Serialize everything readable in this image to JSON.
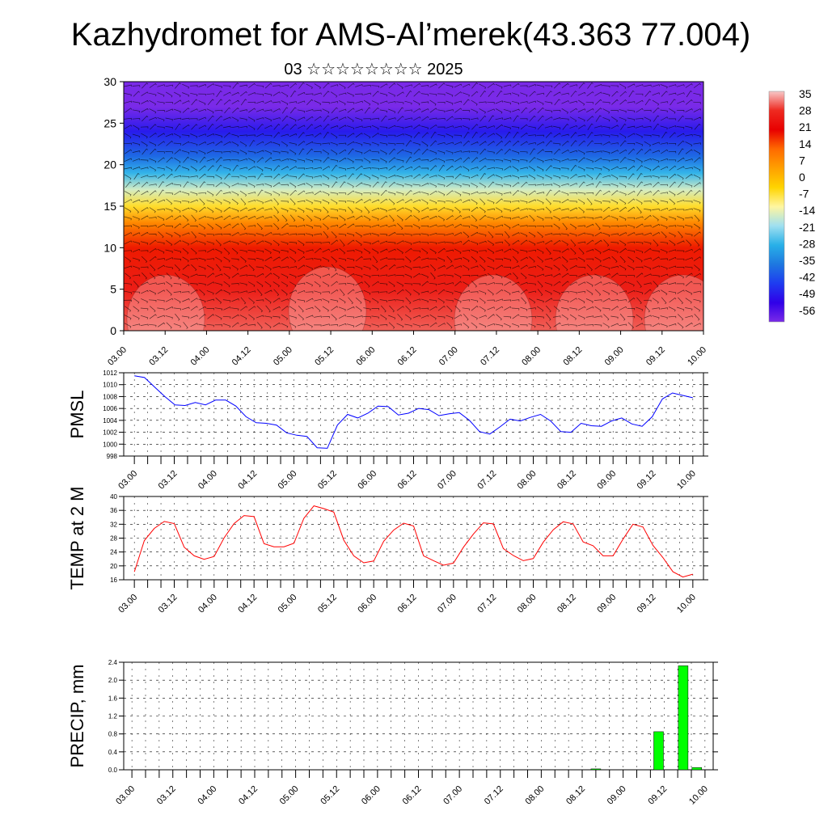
{
  "title": "Kazhydromet for AMS-Al’merek(43.363 77.004)",
  "subtitle": "03 ☆☆☆☆☆☆☆☆ 2025",
  "time_ticks": [
    "03.00",
    "03.12",
    "04.00",
    "04.12",
    "05.00",
    "05.12",
    "06.00",
    "06.12",
    "07.00",
    "07.12",
    "08.00",
    "08.12",
    "09.00",
    "09.12",
    "10.00"
  ],
  "colorbar": {
    "labels": [
      "35",
      "28",
      "21",
      "14",
      "7",
      "0",
      "-7",
      "-14",
      "-21",
      "-28",
      "-35",
      "-42",
      "-49",
      "-56"
    ],
    "stops": [
      "#f8c8c8",
      "#ee2a20",
      "#e80000",
      "#ff6a00",
      "#ffa000",
      "#ffd400",
      "#fff6a0",
      "#a0e0f0",
      "#28b0e8",
      "#1e78e0",
      "#1e3cf0",
      "#3000e8",
      "#7a2ae8"
    ]
  },
  "chart_data": [
    {
      "type": "heatmap",
      "name": "cross-section",
      "x": [
        "03.00",
        "03.12",
        "04.00",
        "04.12",
        "05.00",
        "05.12",
        "06.00",
        "06.12",
        "07.00",
        "07.12",
        "08.00",
        "08.12",
        "09.00",
        "09.12",
        "10.00"
      ],
      "ylim": [
        0,
        30
      ],
      "yticks": [
        0,
        5,
        10,
        15,
        20,
        25,
        30
      ],
      "zlim": [
        -56,
        35
      ],
      "levels": [
        {
          "y": 0,
          "value": 30
        },
        {
          "y": 5,
          "value": 25
        },
        {
          "y": 10,
          "value": 18
        },
        {
          "y": 13,
          "value": 8
        },
        {
          "y": 15,
          "value": -5
        },
        {
          "y": 17,
          "value": -14
        },
        {
          "y": 19,
          "value": -25
        },
        {
          "y": 21,
          "value": -35
        },
        {
          "y": 24,
          "value": -45
        },
        {
          "y": 27,
          "value": -56
        },
        {
          "y": 30,
          "value": -56
        }
      ]
    },
    {
      "type": "line",
      "ylabel": "PMSL",
      "ylim": [
        998,
        1012
      ],
      "yticks": [
        998,
        1000,
        1002,
        1004,
        1006,
        1008,
        1010,
        1012
      ],
      "color": "#0000ff",
      "x_range": [
        0,
        42
      ],
      "values": [
        1011.5,
        1011.2,
        1009.6,
        1008.0,
        1006.6,
        1006.5,
        1007.0,
        1006.6,
        1007.4,
        1007.4,
        1006.4,
        1004.6,
        1003.6,
        1003.5,
        1003.2,
        1001.9,
        1001.5,
        1001.3,
        999.4,
        999.3,
        1003.2,
        1005.0,
        1004.4,
        1005.2,
        1006.4,
        1006.3,
        1004.9,
        1005.2,
        1006.0,
        1005.8,
        1004.8,
        1005.1,
        1005.3,
        1004.0,
        1002.1,
        1001.7,
        1002.9,
        1004.2,
        1003.9,
        1004.5,
        1005.0,
        1003.9,
        1002.1,
        1002.0,
        1003.5,
        1003.1,
        1003.0,
        1003.9,
        1004.4,
        1003.4,
        1003.0,
        1004.6,
        1007.6,
        1008.6,
        1008.2,
        1007.8
      ]
    },
    {
      "type": "line",
      "ylabel": "TEMP at 2 M",
      "ylim": [
        16,
        40
      ],
      "yticks": [
        16,
        20,
        24,
        28,
        32,
        36,
        40
      ],
      "color": "#ff0000",
      "x_range": [
        0,
        42
      ],
      "values": [
        18.3,
        27.3,
        30.8,
        32.8,
        32.2,
        25.4,
        22.9,
        21.9,
        22.7,
        28.1,
        32.2,
        34.5,
        34.2,
        26.4,
        25.5,
        25.5,
        26.5,
        33.7,
        37.3,
        36.5,
        35.5,
        27.4,
        22.9,
        20.9,
        21.4,
        27.1,
        30.3,
        32.3,
        31.5,
        22.9,
        21.5,
        20.2,
        20.8,
        25.4,
        29.2,
        32.4,
        32.1,
        25.0,
        23.0,
        21.5,
        22.1,
        26.8,
        30.4,
        32.7,
        32.1,
        26.9,
        25.8,
        22.9,
        22.9,
        27.7,
        32.0,
        31.2,
        25.9,
        22.4,
        18.3,
        16.8,
        17.6
      ]
    },
    {
      "type": "bar",
      "ylabel": "PRECIP, mm",
      "ylim": [
        0,
        2.4
      ],
      "yticks": [
        "0.0",
        "0.4",
        "0.8",
        "1.2",
        "1.6",
        "2.0",
        "2.4"
      ],
      "color": "#00ff00",
      "bars": [
        {
          "x": 34.0,
          "value": 0.02
        },
        {
          "x": 38.6,
          "value": 0.85
        },
        {
          "x": 40.4,
          "value": 2.32
        },
        {
          "x": 41.4,
          "value": 0.05
        }
      ]
    }
  ]
}
